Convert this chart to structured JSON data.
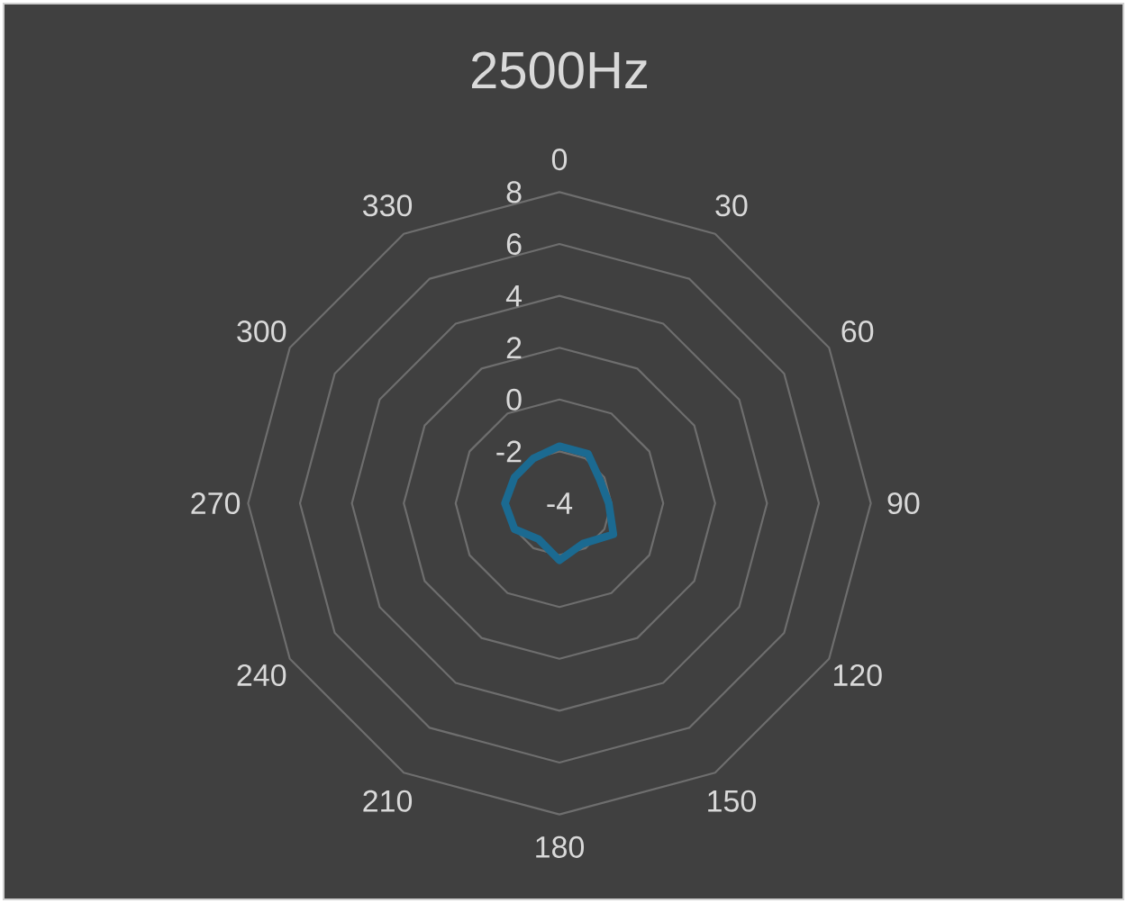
{
  "chart_data": {
    "type": "radar",
    "title": "2500Hz",
    "categories": [
      "0",
      "30",
      "60",
      "90",
      "120",
      "150",
      "180",
      "210",
      "240",
      "270",
      "300",
      "330"
    ],
    "series": [
      {
        "color": "#1b6a91",
        "values": [
          -1.8,
          -1.8,
          -2.2,
          -2.1,
          -1.6,
          -2.2,
          -1.8,
          -2.4,
          -2.0,
          -1.9,
          -2.0,
          -2.0
        ]
      }
    ],
    "ylim": [
      -4,
      8
    ],
    "yticks": [
      -4,
      -2,
      0,
      2,
      4,
      6,
      8
    ],
    "grid": true
  }
}
